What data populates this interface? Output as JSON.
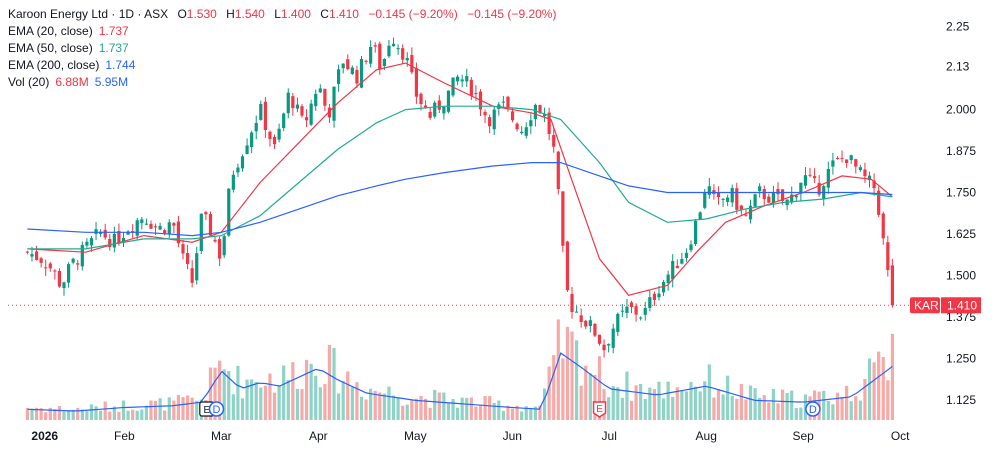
{
  "header": {
    "symbol": "Karoon Energy Ltd · 1D · ASX",
    "o_label": "O",
    "o": "1.530",
    "h_label": "H",
    "h": "1.540",
    "l_label": "L",
    "l": "1.400",
    "c_label": "C",
    "c": "1.410",
    "change": "−0.145 (−9.20%)",
    "change2": "−0.145 (−9.20%)"
  },
  "indicators": [
    {
      "label": "EMA (20, close)",
      "value": "1.737",
      "color": "#f23645"
    },
    {
      "label": "EMA (50, close)",
      "value": "1.737",
      "color": "#22ab94"
    },
    {
      "label": "EMA (200, close)",
      "value": "1.744",
      "color": "#2962ff"
    }
  ],
  "volume": {
    "label": "Vol (20)",
    "value1": "6.88M",
    "value2": "5.95M",
    "color1": "#f23645",
    "color2": "#2962ff"
  },
  "price_badge": {
    "ticker": "KAR",
    "price": "1.410",
    "color": "#f23645"
  },
  "markers": [
    {
      "text": "E",
      "month_index": 1.85,
      "style": "box-dark"
    },
    {
      "text": "D",
      "month_index": 1.95,
      "style": "circle-blue"
    },
    {
      "text": "E",
      "month_index": 5.9,
      "style": "shield-red"
    },
    {
      "text": "D",
      "month_index": 8.1,
      "style": "circle-blue"
    }
  ],
  "colors": {
    "up": "#089981",
    "down": "#f23645",
    "up_vol": "#8fd3c7",
    "down_vol": "#f7a9a7"
  },
  "chart_data": {
    "type": "candlestick",
    "title": "Karoon Energy Ltd · 1D · ASX",
    "y_ticks": [
      "2.25",
      "2.13",
      "2.000",
      "1.875",
      "1.750",
      "1.625",
      "1.500",
      "1.375",
      "1.250",
      "1.125"
    ],
    "x_ticks": [
      "2026",
      "Feb",
      "Mar",
      "Apr",
      "May",
      "Jun",
      "Jul",
      "Aug",
      "Sep",
      "Oct"
    ],
    "ylim": [
      1.05,
      2.27
    ],
    "last_close": 1.41,
    "price_path": [
      [
        0,
        1.57
      ],
      [
        0.15,
        1.55
      ],
      [
        0.25,
        1.52
      ],
      [
        0.35,
        1.47
      ],
      [
        0.45,
        1.53
      ],
      [
        0.6,
        1.58
      ],
      [
        0.75,
        1.63
      ],
      [
        0.9,
        1.6
      ],
      [
        1.05,
        1.65
      ],
      [
        1.2,
        1.68
      ],
      [
        1.35,
        1.64
      ],
      [
        1.5,
        1.66
      ],
      [
        1.6,
        1.55
      ],
      [
        1.7,
        1.48
      ],
      [
        1.8,
        1.68
      ],
      [
        1.9,
        1.63
      ],
      [
        2.0,
        1.55
      ],
      [
        2.1,
        1.8
      ],
      [
        2.25,
        1.9
      ],
      [
        2.4,
        2.0
      ],
      [
        2.55,
        1.88
      ],
      [
        2.7,
        2.05
      ],
      [
        2.85,
        1.95
      ],
      [
        3.0,
        2.08
      ],
      [
        3.1,
        1.98
      ],
      [
        3.25,
        2.15
      ],
      [
        3.4,
        2.1
      ],
      [
        3.55,
        2.2
      ],
      [
        3.65,
        2.12
      ],
      [
        3.75,
        2.23
      ],
      [
        3.9,
        2.16
      ],
      [
        4.0,
        2.05
      ],
      [
        4.15,
        1.98
      ],
      [
        4.3,
        2.03
      ],
      [
        4.45,
        2.1
      ],
      [
        4.6,
        2.06
      ],
      [
        4.75,
        1.97
      ],
      [
        4.9,
        2.01
      ],
      [
        5.1,
        1.94
      ],
      [
        5.25,
        2.02
      ],
      [
        5.35,
        1.97
      ],
      [
        5.45,
        1.85
      ],
      [
        5.5,
        1.62
      ],
      [
        5.58,
        1.42
      ],
      [
        5.7,
        1.38
      ],
      [
        5.85,
        1.33
      ],
      [
        5.95,
        1.28
      ],
      [
        6.05,
        1.35
      ],
      [
        6.2,
        1.4
      ],
      [
        6.35,
        1.38
      ],
      [
        6.5,
        1.46
      ],
      [
        6.65,
        1.52
      ],
      [
        6.8,
        1.58
      ],
      [
        6.92,
        1.68
      ],
      [
        7.0,
        1.78
      ],
      [
        7.1,
        1.71
      ],
      [
        7.25,
        1.75
      ],
      [
        7.4,
        1.67
      ],
      [
        7.55,
        1.75
      ],
      [
        7.7,
        1.73
      ],
      [
        7.85,
        1.72
      ],
      [
        8.0,
        1.8
      ],
      [
        8.15,
        1.76
      ],
      [
        8.3,
        1.83
      ],
      [
        8.45,
        1.86
      ],
      [
        8.6,
        1.8
      ],
      [
        8.75,
        1.76
      ],
      [
        8.85,
        1.55
      ],
      [
        8.92,
        1.41
      ]
    ],
    "volume_path": [
      [
        0,
        0.12
      ],
      [
        0.5,
        0.1
      ],
      [
        1.0,
        0.14
      ],
      [
        1.5,
        0.16
      ],
      [
        1.8,
        0.2
      ],
      [
        2.0,
        0.55
      ],
      [
        2.2,
        0.35
      ],
      [
        2.4,
        0.42
      ],
      [
        2.6,
        0.38
      ],
      [
        2.8,
        0.48
      ],
      [
        3.0,
        0.58
      ],
      [
        3.2,
        0.45
      ],
      [
        3.5,
        0.3
      ],
      [
        4.0,
        0.22
      ],
      [
        4.5,
        0.18
      ],
      [
        5.0,
        0.14
      ],
      [
        5.3,
        0.12
      ],
      [
        5.5,
        0.75
      ],
      [
        5.7,
        0.6
      ],
      [
        6.0,
        0.35
      ],
      [
        6.5,
        0.28
      ],
      [
        7.0,
        0.38
      ],
      [
        7.5,
        0.22
      ],
      [
        8.0,
        0.2
      ],
      [
        8.5,
        0.26
      ],
      [
        8.92,
        0.6
      ]
    ],
    "ema": [
      {
        "name": "EMA (20, close)",
        "color": "#f23645",
        "points": [
          [
            0,
            1.58
          ],
          [
            0.6,
            1.57
          ],
          [
            1.2,
            1.62
          ],
          [
            1.7,
            1.6
          ],
          [
            2.0,
            1.63
          ],
          [
            2.4,
            1.78
          ],
          [
            2.8,
            1.9
          ],
          [
            3.2,
            2.02
          ],
          [
            3.6,
            2.12
          ],
          [
            3.9,
            2.14
          ],
          [
            4.3,
            2.08
          ],
          [
            4.8,
            2.01
          ],
          [
            5.2,
            1.99
          ],
          [
            5.4,
            1.97
          ],
          [
            5.6,
            1.8
          ],
          [
            5.9,
            1.55
          ],
          [
            6.2,
            1.44
          ],
          [
            6.6,
            1.47
          ],
          [
            6.9,
            1.57
          ],
          [
            7.2,
            1.66
          ],
          [
            7.6,
            1.71
          ],
          [
            8.0,
            1.75
          ],
          [
            8.4,
            1.8
          ],
          [
            8.7,
            1.79
          ],
          [
            8.92,
            1.737
          ]
        ]
      },
      {
        "name": "EMA (50, close)",
        "color": "#22ab94",
        "points": [
          [
            0,
            1.58
          ],
          [
            0.6,
            1.58
          ],
          [
            1.2,
            1.61
          ],
          [
            1.7,
            1.61
          ],
          [
            2.0,
            1.62
          ],
          [
            2.4,
            1.68
          ],
          [
            2.8,
            1.78
          ],
          [
            3.2,
            1.88
          ],
          [
            3.6,
            1.96
          ],
          [
            3.9,
            2.0
          ],
          [
            4.3,
            2.01
          ],
          [
            4.8,
            2.01
          ],
          [
            5.2,
            2.0
          ],
          [
            5.5,
            1.97
          ],
          [
            5.9,
            1.84
          ],
          [
            6.2,
            1.72
          ],
          [
            6.6,
            1.66
          ],
          [
            7.0,
            1.67
          ],
          [
            7.4,
            1.7
          ],
          [
            7.8,
            1.72
          ],
          [
            8.2,
            1.73
          ],
          [
            8.6,
            1.75
          ],
          [
            8.92,
            1.737
          ]
        ]
      },
      {
        "name": "EMA (200, close)",
        "color": "#2962ff",
        "points": [
          [
            0,
            1.64
          ],
          [
            0.6,
            1.63
          ],
          [
            1.2,
            1.63
          ],
          [
            1.7,
            1.62
          ],
          [
            2.0,
            1.63
          ],
          [
            2.4,
            1.66
          ],
          [
            2.8,
            1.7
          ],
          [
            3.2,
            1.74
          ],
          [
            3.6,
            1.77
          ],
          [
            3.9,
            1.79
          ],
          [
            4.3,
            1.81
          ],
          [
            4.8,
            1.83
          ],
          [
            5.2,
            1.84
          ],
          [
            5.5,
            1.84
          ],
          [
            5.9,
            1.8
          ],
          [
            6.2,
            1.77
          ],
          [
            6.6,
            1.75
          ],
          [
            7.0,
            1.75
          ],
          [
            7.4,
            1.75
          ],
          [
            7.8,
            1.75
          ],
          [
            8.2,
            1.75
          ],
          [
            8.6,
            1.75
          ],
          [
            8.92,
            1.744
          ]
        ]
      }
    ],
    "volume_ema": {
      "name": "Vol (20)",
      "color": "#2962ff"
    }
  }
}
